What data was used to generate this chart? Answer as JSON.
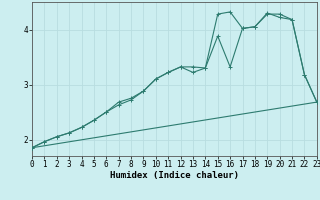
{
  "xlabel": "Humidex (Indice chaleur)",
  "bg_color": "#cceef0",
  "line_color": "#2d7b6f",
  "grid_color": "#b8dde0",
  "xlim": [
    0,
    23
  ],
  "ylim": [
    1.7,
    4.5
  ],
  "xticks": [
    0,
    1,
    2,
    3,
    4,
    5,
    6,
    7,
    8,
    9,
    10,
    11,
    12,
    13,
    14,
    15,
    16,
    17,
    18,
    19,
    20,
    21,
    22,
    23
  ],
  "yticks": [
    2,
    3,
    4
  ],
  "line1_x": [
    0,
    1,
    2,
    3,
    4,
    5,
    6,
    7,
    8,
    9,
    10,
    11,
    12,
    13,
    14,
    15,
    16,
    17,
    18,
    19,
    20,
    21,
    22,
    23
  ],
  "line1_y": [
    1.85,
    1.96,
    2.05,
    2.12,
    2.22,
    2.35,
    2.5,
    2.63,
    2.72,
    2.88,
    3.1,
    3.22,
    3.32,
    3.22,
    3.3,
    4.28,
    4.32,
    4.02,
    4.05,
    4.3,
    4.22,
    4.18,
    3.18,
    2.68
  ],
  "line2_x": [
    0,
    1,
    2,
    3,
    4,
    5,
    6,
    7,
    8,
    9,
    10,
    11,
    12,
    13,
    14,
    15,
    16,
    17,
    18,
    19,
    20,
    21,
    22,
    23
  ],
  "line2_y": [
    1.85,
    1.96,
    2.05,
    2.12,
    2.22,
    2.35,
    2.5,
    2.68,
    2.75,
    2.88,
    3.1,
    3.22,
    3.32,
    3.32,
    3.3,
    3.88,
    3.32,
    4.02,
    4.05,
    4.28,
    4.28,
    4.18,
    3.18,
    2.68
  ],
  "line3_x": [
    0,
    23
  ],
  "line3_y": [
    1.85,
    2.68
  ]
}
